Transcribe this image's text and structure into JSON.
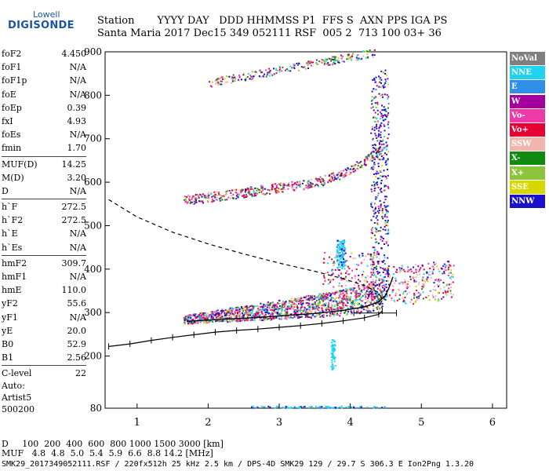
{
  "logo": {
    "line1": "Lowell",
    "line2": "DIGISONDE"
  },
  "header": {
    "row1": "Station       YYYY DAY   DDD HHMMSS P1  FFS S  AXN PPS IGA PS",
    "row2": "Santa Maria 2017 Dec15 349 052111 RSF  005 2  713 100 03+ 36"
  },
  "params": [
    {
      "label": "foF2",
      "value": "4.450"
    },
    {
      "label": "foF1",
      "value": "N/A"
    },
    {
      "label": "foF1p",
      "value": "N/A"
    },
    {
      "label": "foE",
      "value": "N/A"
    },
    {
      "label": "foEp",
      "value": "0.39"
    },
    {
      "label": "fxI",
      "value": "4.93"
    },
    {
      "label": "foEs",
      "value": "N/A"
    },
    {
      "label": "fmin",
      "value": "1.70"
    },
    {
      "label": "MUF(D)",
      "value": "14.25",
      "sep": true
    },
    {
      "label": "M(D)",
      "value": "3.20"
    },
    {
      "label": "D",
      "value": "N/A"
    },
    {
      "label": "h`F",
      "value": "272.5",
      "sep": true
    },
    {
      "label": "h`F2",
      "value": "272.5"
    },
    {
      "label": "h`E",
      "value": "N/A"
    },
    {
      "label": "h`Es",
      "value": "N/A"
    },
    {
      "label": "hmF2",
      "value": "309.7",
      "sep": true
    },
    {
      "label": "hmF1",
      "value": "N/A"
    },
    {
      "label": "hmE",
      "value": "110.0"
    },
    {
      "label": "yF2",
      "value": "55.6"
    },
    {
      "label": "yF1",
      "value": "N/A"
    },
    {
      "label": "yE",
      "value": "20.0"
    },
    {
      "label": "B0",
      "value": "52.9"
    },
    {
      "label": "B1",
      "value": "2.56"
    },
    {
      "label": "C-level",
      "value": "22",
      "sep": true
    }
  ],
  "auto": {
    "line1": "Auto:",
    "line2": "Artist5",
    "line3": "500200"
  },
  "legend": [
    {
      "label": "NoVal",
      "color": "#7f7f7f"
    },
    {
      "label": "NNE",
      "color": "#22d3f0"
    },
    {
      "label": "E",
      "color": "#2f8fe6"
    },
    {
      "label": "W",
      "color": "#a3009e"
    },
    {
      "label": "Vo-",
      "color": "#ee3aa7"
    },
    {
      "label": "Vo+",
      "color": "#e60033"
    },
    {
      "label": "SSW",
      "color": "#f2b5ae"
    },
    {
      "label": "X-",
      "color": "#108a10"
    },
    {
      "label": "X+",
      "color": "#8cc43c"
    },
    {
      "label": "SSE",
      "color": "#d6d600"
    },
    {
      "label": "NNW",
      "color": "#1a10cc"
    }
  ],
  "footer": {
    "d_row": "D     100  200  400  600  800 1000 1500 3000 [km]",
    "muf_row": "MUF   4.8  4.8  5.0  5.4  5.9  6.6  8.8 14.2 [MHz]",
    "info": "SMK29_2017349052111.RSF / 220fx512h 25 kHz 2.5 km / DPS-4D SMK29 129 / 29.7 S 306.3 E Ion2Png 1.3.20"
  },
  "chart_data": {
    "type": "scatter",
    "title": "",
    "xlabel": "",
    "ylabel": "",
    "xlim": [
      0.55,
      6.2
    ],
    "ylim": [
      80,
      900
    ],
    "xticks": [
      1,
      2,
      3,
      4,
      5,
      6
    ],
    "yticks": [
      80,
      200,
      300,
      400,
      500,
      600,
      700,
      800,
      900
    ],
    "grid": false,
    "legend_position": "right",
    "series": [
      {
        "name": "hprofile (dashed)",
        "style": "dashed",
        "points": [
          [
            0.6,
            560
          ],
          [
            1.0,
            520
          ],
          [
            1.5,
            485
          ],
          [
            2.0,
            458
          ],
          [
            2.5,
            435
          ],
          [
            3.0,
            414
          ],
          [
            3.5,
            395
          ],
          [
            3.9,
            378
          ],
          [
            4.2,
            362
          ],
          [
            4.4,
            346
          ],
          [
            4.45,
            330
          ],
          [
            4.42,
            318
          ]
        ]
      },
      {
        "name": "trace",
        "style": "solid",
        "points": [
          [
            1.7,
            280
          ],
          [
            2.0,
            283
          ],
          [
            2.5,
            287
          ],
          [
            3.0,
            292
          ],
          [
            3.5,
            298
          ],
          [
            3.9,
            305
          ],
          [
            4.2,
            313
          ],
          [
            4.4,
            325
          ],
          [
            4.5,
            340
          ],
          [
            4.55,
            360
          ],
          [
            4.6,
            382
          ]
        ]
      },
      {
        "name": "virtual height with error bars",
        "style": "ticks",
        "points": [
          [
            0.6,
            222
          ],
          [
            0.9,
            228
          ],
          [
            1.2,
            236
          ],
          [
            1.5,
            243
          ],
          [
            1.8,
            249
          ],
          [
            2.1,
            255
          ],
          [
            2.4,
            259
          ],
          [
            2.7,
            262
          ],
          [
            3.0,
            266
          ],
          [
            3.3,
            270
          ],
          [
            3.6,
            275
          ],
          [
            3.9,
            281
          ],
          [
            4.2,
            288
          ],
          [
            4.4,
            296
          ],
          [
            4.45,
            304
          ]
        ]
      },
      {
        "name": "error bar",
        "style": "hbar",
        "points": [
          [
            4.05,
            299
          ],
          [
            4.65,
            299
          ]
        ]
      }
    ]
  }
}
